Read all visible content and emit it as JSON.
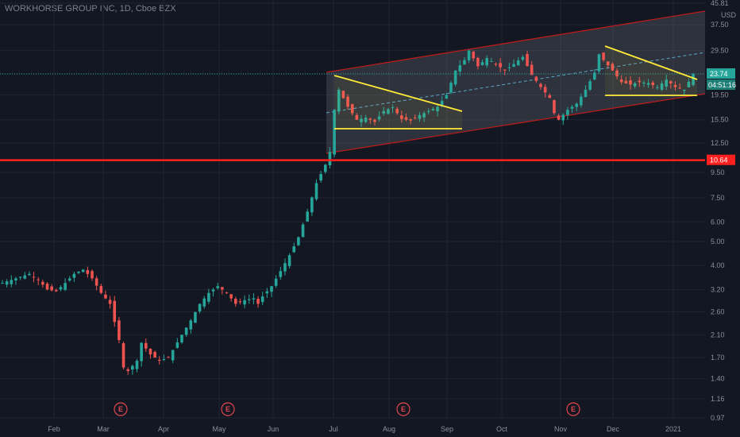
{
  "header": {
    "title": "WORKHORSE GROUP INC, 1D, Cboe BZX"
  },
  "chart_data": {
    "type": "candlestick",
    "currency": "USD",
    "y_scale": "log",
    "y_ticks": [
      45.81,
      37.5,
      29.5,
      23.74,
      19.5,
      15.5,
      12.5,
      9.5,
      7.5,
      6.0,
      5.0,
      4.0,
      3.2,
      2.6,
      2.1,
      1.7,
      1.4,
      1.16,
      0.97
    ],
    "y_tick_labels": [
      "45.81",
      "37.50",
      "29.50",
      "",
      "19.50",
      "15.50",
      "12.50",
      "9.50",
      "7.50",
      "6.00",
      "5.00",
      "4.00",
      "3.20",
      "2.60",
      "2.10",
      "1.70",
      "1.40",
      "1.16",
      "0.97"
    ],
    "x_labels": [
      "Feb",
      "Mar",
      "Apr",
      "May",
      "Jun",
      "Jul",
      "Aug",
      "Sep",
      "Oct",
      "Nov",
      "Dec",
      "2021"
    ],
    "current_price": {
      "label": "23.74",
      "value": 23.74,
      "countdown": "04:51:16",
      "color": "#26a69a"
    },
    "support_line": {
      "label": "10.64",
      "value": 10.64,
      "color": "#ff1f1f"
    },
    "earnings_markers": [
      "E",
      "E",
      "E",
      "E"
    ],
    "colors": {
      "up": "#26a69a",
      "down": "#ef5350",
      "triangle": "#ffeb3b",
      "channel": "#b71c1c"
    },
    "price_path": [
      [
        0,
        3.4
      ],
      [
        3,
        3.55
      ],
      [
        6,
        3.7
      ],
      [
        8,
        3.5
      ],
      [
        10,
        3.2
      ],
      [
        12,
        3.15
      ],
      [
        14,
        3.4
      ],
      [
        16,
        3.7
      ],
      [
        18,
        3.85
      ],
      [
        20,
        3.55
      ],
      [
        22,
        3.1
      ],
      [
        24,
        2.8
      ],
      [
        26,
        2.0
      ],
      [
        27,
        1.55
      ],
      [
        28,
        1.5
      ],
      [
        30,
        1.65
      ],
      [
        31,
        1.95
      ],
      [
        33,
        1.75
      ],
      [
        35,
        1.65
      ],
      [
        37,
        1.7
      ],
      [
        40,
        2.1
      ],
      [
        42,
        2.4
      ],
      [
        44,
        2.8
      ],
      [
        46,
        3.1
      ],
      [
        48,
        3.3
      ],
      [
        50,
        3.1
      ],
      [
        52,
        2.8
      ],
      [
        54,
        2.9
      ],
      [
        56,
        2.95
      ],
      [
        57,
        2.8
      ],
      [
        58,
        3.0
      ],
      [
        60,
        3.3
      ],
      [
        62,
        3.8
      ],
      [
        64,
        4.4
      ],
      [
        66,
        5.2
      ],
      [
        68,
        6.6
      ],
      [
        70,
        8.6
      ],
      [
        72,
        10.2
      ],
      [
        73,
        11.5
      ],
      [
        74,
        17.0
      ],
      [
        75,
        20.5
      ],
      [
        77,
        17.5
      ],
      [
        79,
        15.5
      ],
      [
        81,
        15.8
      ],
      [
        83,
        15.2
      ],
      [
        85,
        16.8
      ],
      [
        87,
        17.4
      ],
      [
        89,
        15.6
      ],
      [
        91,
        15.4
      ],
      [
        93,
        16.2
      ],
      [
        95,
        16.8
      ],
      [
        97,
        17.5
      ],
      [
        99,
        19.5
      ],
      [
        101,
        24.5
      ],
      [
        103,
        27.0
      ],
      [
        104,
        29.5
      ],
      [
        106,
        25.5
      ],
      [
        108,
        27.5
      ],
      [
        110,
        26.0
      ],
      [
        112,
        24.5
      ],
      [
        114,
        26.0
      ],
      [
        116,
        27.8
      ],
      [
        118,
        23.5
      ],
      [
        120,
        21.0
      ],
      [
        122,
        19.0
      ],
      [
        123,
        16.5
      ],
      [
        124,
        15.5
      ],
      [
        126,
        17.0
      ],
      [
        128,
        18.0
      ],
      [
        130,
        20.5
      ],
      [
        132,
        24.0
      ],
      [
        133,
        28.5
      ],
      [
        134,
        27.0
      ],
      [
        136,
        24.5
      ],
      [
        138,
        22.0
      ],
      [
        140,
        21.5
      ],
      [
        142,
        22.0
      ],
      [
        144,
        21.8
      ],
      [
        146,
        21.0
      ],
      [
        148,
        22.5
      ],
      [
        150,
        21.0
      ],
      [
        152,
        20.5
      ],
      [
        154,
        23.74
      ]
    ]
  }
}
